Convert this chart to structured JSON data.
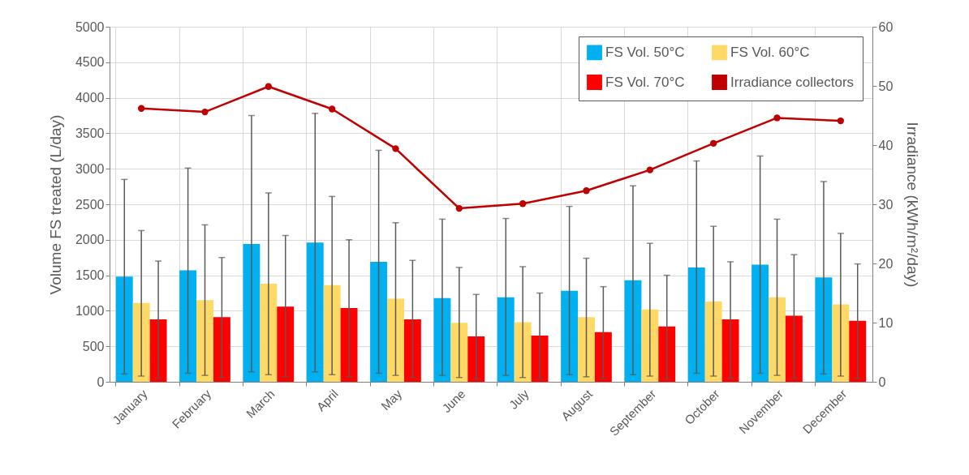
{
  "chart_data": {
    "type": "bar",
    "ylabel": "Volume FS  treated (L/day)",
    "y2label": "Irradiance (kWh/m²/day)",
    "categories": [
      "January",
      "February",
      "March",
      "April",
      "May",
      "June",
      "July",
      "August",
      "September",
      "October",
      "November",
      "December"
    ],
    "ylim": [
      0,
      5000
    ],
    "yticks": [
      0,
      500,
      1000,
      1500,
      2000,
      2500,
      3000,
      3500,
      4000,
      4500,
      5000
    ],
    "y2lim": [
      0,
      60
    ],
    "y2ticks": [
      0,
      10,
      20,
      30,
      40,
      50,
      60
    ],
    "grid": true,
    "legend": "top right",
    "marker": "circle",
    "series": [
      {
        "name": "FS Vol. 50°C",
        "color": "#00b0f0",
        "values": [
          1480,
          1570,
          1940,
          1960,
          1690,
          1180,
          1190,
          1280,
          1430,
          1610,
          1650,
          1470
        ],
        "errors": [
          [
            110,
            2850
          ],
          [
            120,
            3010
          ],
          [
            140,
            3750
          ],
          [
            140,
            3780
          ],
          [
            120,
            3260
          ],
          [
            90,
            2290
          ],
          [
            90,
            2300
          ],
          [
            100,
            2470
          ],
          [
            100,
            2760
          ],
          [
            120,
            3110
          ],
          [
            120,
            3180
          ],
          [
            110,
            2820
          ]
        ]
      },
      {
        "name": "FS Vol. 60°C",
        "color": "#ffd966",
        "values": [
          1110,
          1150,
          1380,
          1360,
          1170,
          830,
          840,
          910,
          1020,
          1130,
          1190,
          1090
        ],
        "errors": [
          [
            80,
            2130
          ],
          [
            90,
            2210
          ],
          [
            100,
            2660
          ],
          [
            100,
            2610
          ],
          [
            90,
            2240
          ],
          [
            60,
            1610
          ],
          [
            60,
            1620
          ],
          [
            70,
            1740
          ],
          [
            80,
            1950
          ],
          [
            80,
            2190
          ],
          [
            90,
            2290
          ],
          [
            80,
            2090
          ]
        ]
      },
      {
        "name": "FS Vol. 70°C",
        "color": "#ff0000",
        "values": [
          880,
          910,
          1060,
          1040,
          880,
          640,
          650,
          700,
          780,
          880,
          930,
          860
        ],
        "errors": [
          [
            50,
            1700
          ],
          [
            60,
            1750
          ],
          [
            70,
            2060
          ],
          [
            70,
            2000
          ],
          [
            60,
            1710
          ],
          [
            40,
            1230
          ],
          [
            40,
            1250
          ],
          [
            40,
            1340
          ],
          [
            40,
            1500
          ],
          [
            50,
            1690
          ],
          [
            50,
            1790
          ],
          [
            50,
            1660
          ]
        ]
      },
      {
        "name": "Irradiance collectors",
        "type": "line",
        "axis": "y2",
        "color": "#c00000",
        "values": [
          46.2,
          45.6,
          49.9,
          46.1,
          39.4,
          29.3,
          30.1,
          32.3,
          35.8,
          40.3,
          44.6,
          44.1
        ]
      }
    ]
  }
}
